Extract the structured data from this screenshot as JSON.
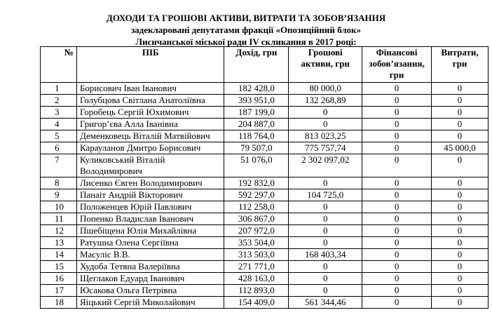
{
  "title": {
    "line1": "ДОХОДИ ТА ГРОШОВІ  АКТИВИ, ВИТРАТИ ТА ЗОБОВ’ЯЗАННЯ",
    "line2": "задекларовані депутатами  фракції «Опозиційний блок»",
    "line3": "Лисичанської  міської ради IV скликання  в 2017 році:"
  },
  "headers": [
    "№",
    "ПІБ",
    "Дохід, грн",
    "Грошові активи, грн",
    "Фінансові зобов’язання, грн",
    "Витрати, грн"
  ],
  "rows": [
    [
      "1",
      "Борисович Іван Іванович",
      "182 428,0",
      "80 000,0",
      "0",
      "0"
    ],
    [
      "2",
      "Голубцова Світлана Анатоліївна",
      "393 951,0",
      "132 268,89",
      "0",
      "0"
    ],
    [
      "3",
      "Горобець Сергій Юхимович",
      "187 199,0",
      "0",
      "0",
      "0"
    ],
    [
      "4",
      "Григор’єва Алла Іванівна",
      "204 887,0",
      "0",
      "0",
      "0"
    ],
    [
      "5",
      "Деменковець Віталій Матвійович",
      "118 764,0",
      "813 023,25",
      "0",
      "0"
    ],
    [
      "6",
      "Карауланов Дмитро Борисович",
      "79 507,0",
      "775 757,74",
      "0",
      "45 000,0"
    ],
    [
      "7",
      "Куликовський Віталій Володимирович",
      "51 076,0",
      "2 302 097,02",
      "0",
      "0"
    ],
    [
      "8",
      "Лисенко Євген Володимирович",
      "192 832,0",
      "0",
      "0",
      "0"
    ],
    [
      "9",
      "Панаіт Андрій Вікторович",
      "592 297,0",
      "104 725,0",
      "0",
      "0"
    ],
    [
      "10",
      "Положенцев Юрій Павлович",
      "112 258,0",
      "0",
      "0",
      "0"
    ],
    [
      "11",
      "Попенко Владислав Іванович",
      "306 867,0",
      "0",
      "0",
      "0"
    ],
    [
      "12",
      "Пшебіщена Юлія Михайлівна",
      "207 972,0",
      "0",
      "0",
      "0"
    ],
    [
      "13",
      "Ратушна Олена Сергіївна",
      "353 504,0",
      "0",
      "0",
      "0"
    ],
    [
      "14",
      "Масуліс В.В.",
      "313 503,0",
      "168 403,34",
      "0",
      "0"
    ],
    [
      "15",
      "Худоба Тетяна Валеріївна",
      "271 771,0",
      "0",
      "0",
      "0"
    ],
    [
      "16",
      "Щеглаков Едуард Іванович",
      "428 163,0",
      "0",
      "0",
      "0"
    ],
    [
      "17",
      "Юсакова Ольга Петрівна",
      "112 893,0",
      "0",
      "0",
      "0"
    ],
    [
      "18",
      "Яіцький Сергій Миколайович",
      "154 409,0",
      "561 344,46",
      "0",
      "0"
    ]
  ]
}
